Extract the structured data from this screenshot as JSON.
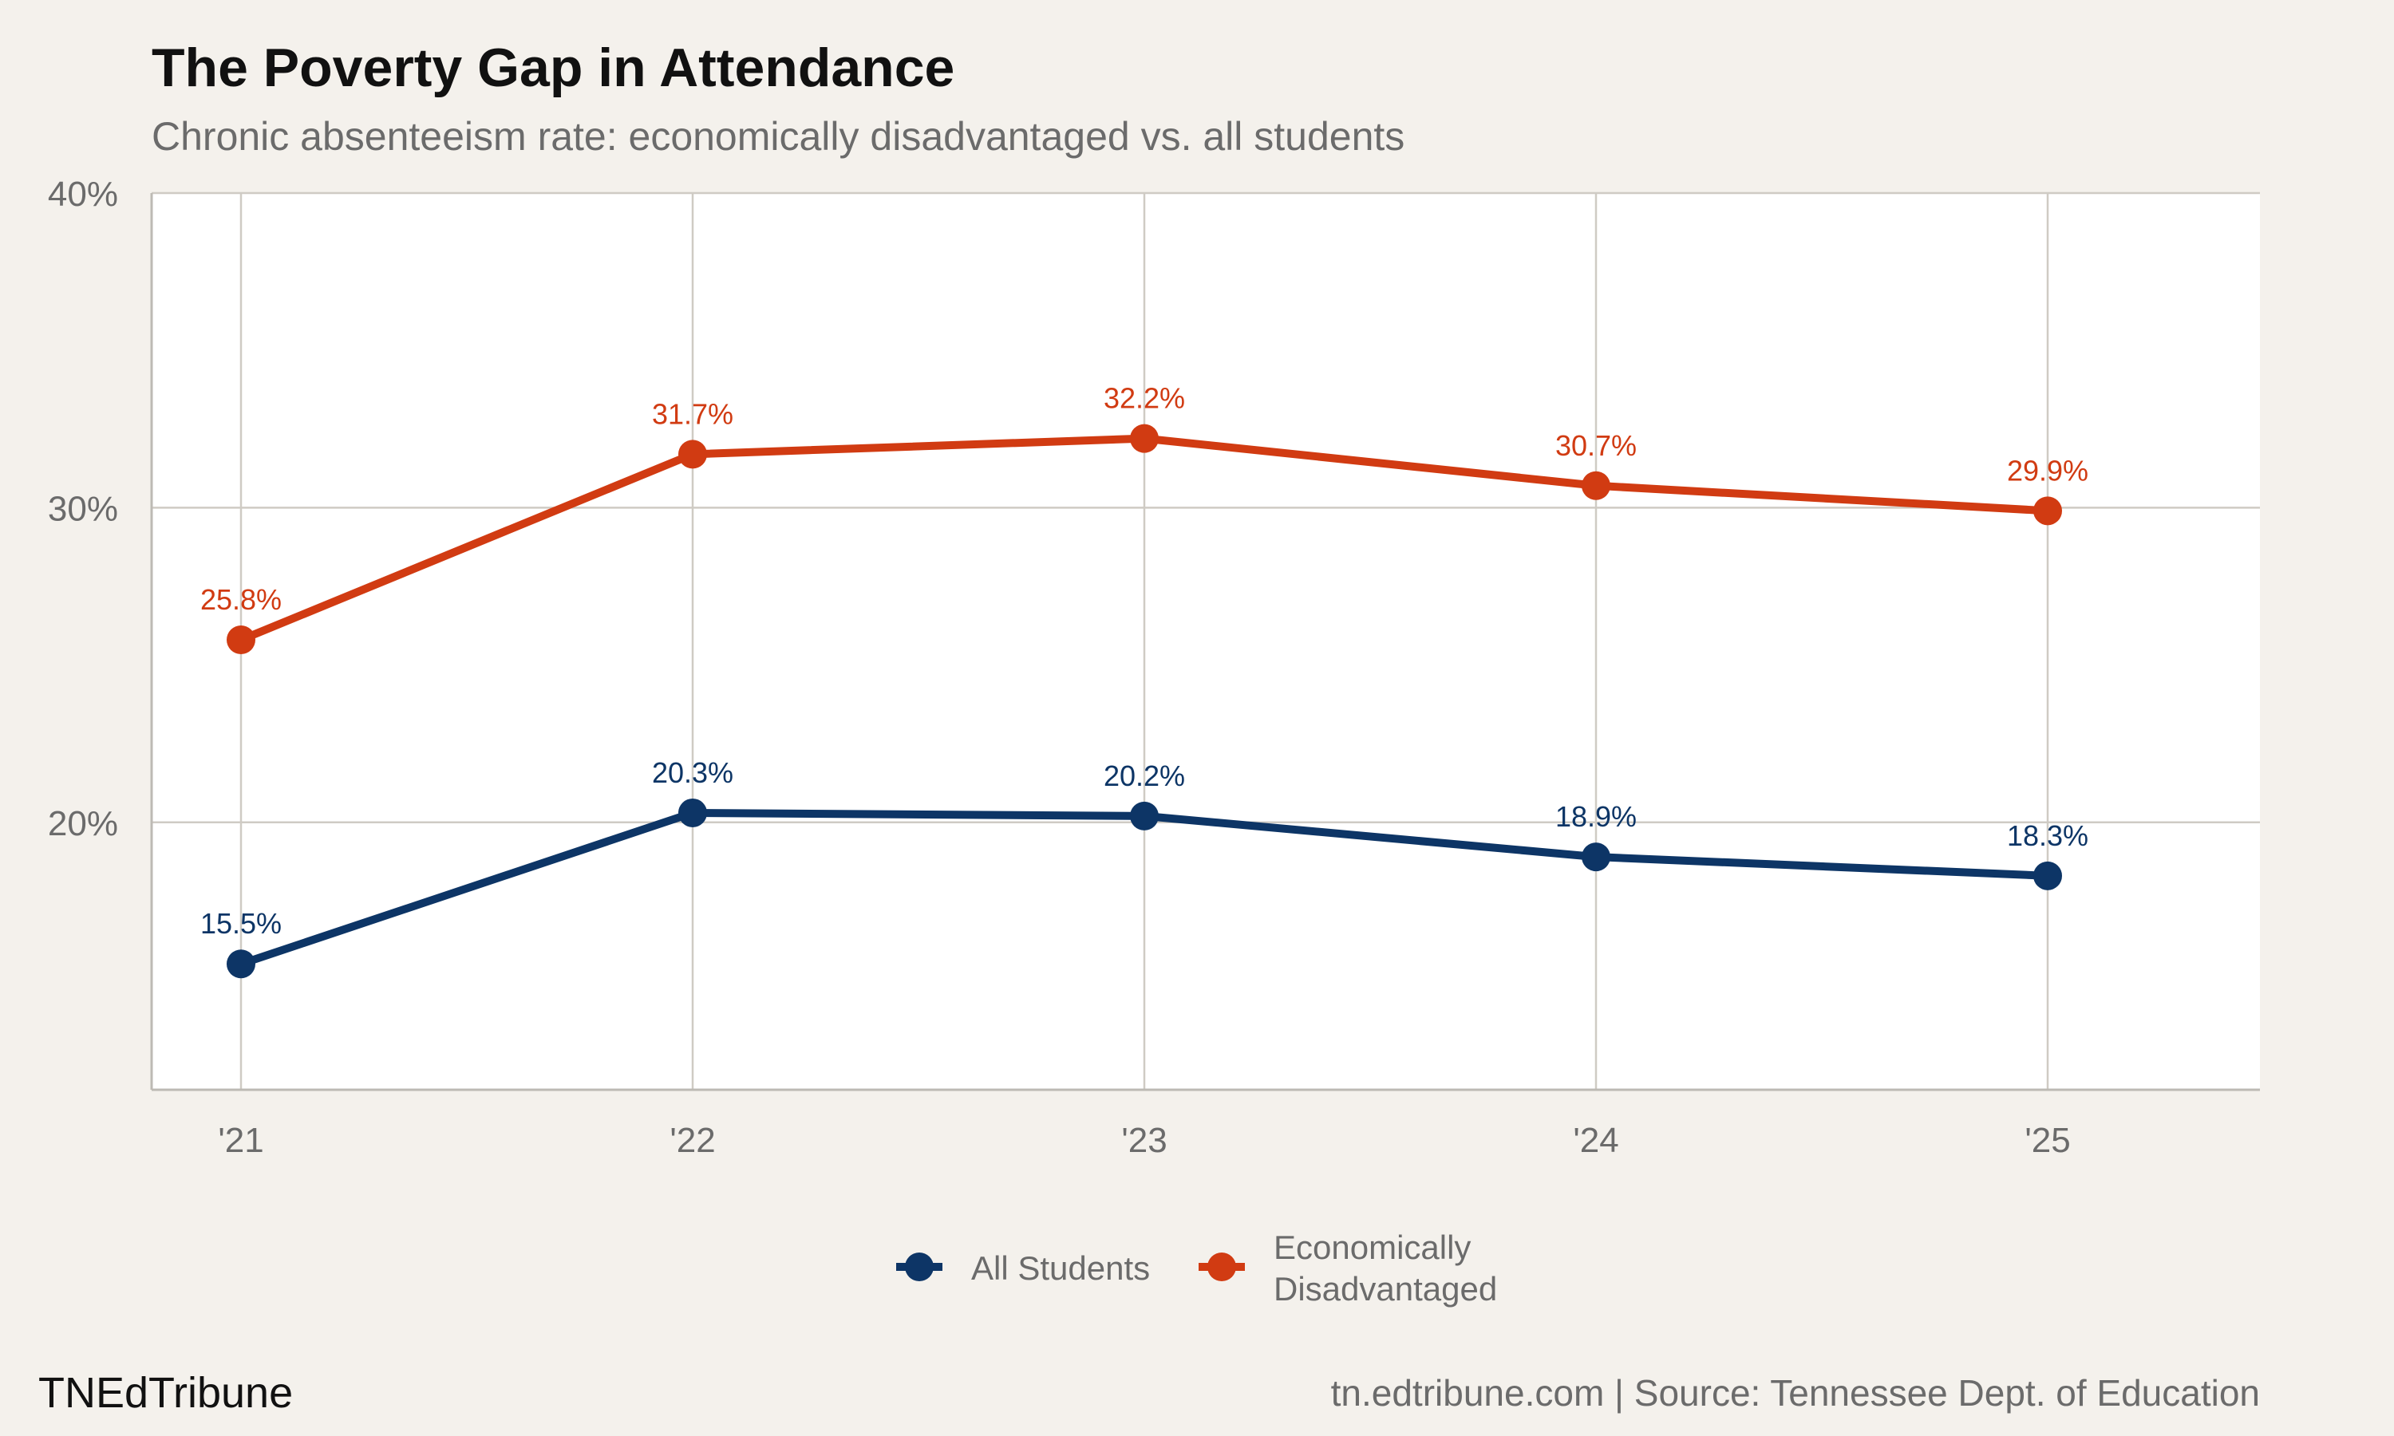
{
  "chart_data": {
    "type": "line",
    "title": "The Poverty Gap in Attendance",
    "subtitle": "Chronic absenteeism rate: economically disadvantaged vs. all students",
    "categories": [
      "'21",
      "'22",
      "'23",
      "'24",
      "'25"
    ],
    "y_ticks": [
      "20%",
      "30%",
      "40%"
    ],
    "y_tick_values": [
      20,
      30,
      40
    ],
    "ylim": [
      11.5,
      40
    ],
    "grid": true,
    "legend_position": "bottom",
    "series": [
      {
        "name": "All Students",
        "color": "#0d3566",
        "values": [
          15.5,
          20.3,
          20.2,
          18.9,
          18.3
        ],
        "labels": [
          "15.5%",
          "20.3%",
          "20.2%",
          "18.9%",
          "18.3%"
        ]
      },
      {
        "name": "Economically Disadvantaged",
        "legend_lines": [
          "Economically",
          "Disadvantaged"
        ],
        "color": "#d13b12",
        "values": [
          25.8,
          31.7,
          32.2,
          30.7,
          29.9
        ],
        "labels": [
          "25.8%",
          "31.7%",
          "32.2%",
          "30.7%",
          "29.9%"
        ]
      }
    ]
  },
  "footer": {
    "brand": "TNEdTribune",
    "source": "tn.edtribune.com | Source: Tennessee Dept. of Education"
  }
}
